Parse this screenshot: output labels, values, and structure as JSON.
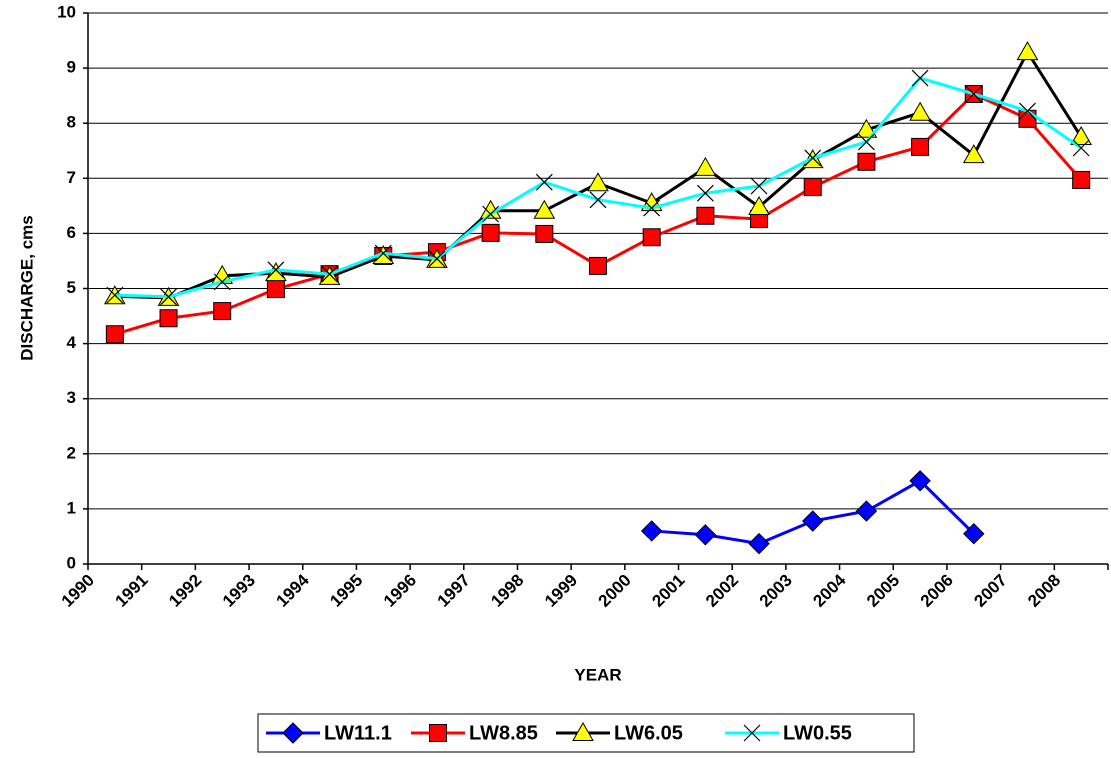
{
  "chart_data": {
    "type": "line",
    "xlabel": "YEAR",
    "ylabel": "DISCHARGE, cms",
    "categories": [
      "1990",
      "1991",
      "1992",
      "1993",
      "1994",
      "1995",
      "1996",
      "1997",
      "1998",
      "1999",
      "2000",
      "2001",
      "2002",
      "2003",
      "2004",
      "2005",
      "2006",
      "2007",
      "2008"
    ],
    "ylim": [
      0,
      10
    ],
    "yticks": [
      0,
      1,
      2,
      3,
      4,
      5,
      6,
      7,
      8,
      9,
      10
    ],
    "grid": true,
    "legend": "bottom",
    "series": [
      {
        "name": "LW11.1",
        "color": "#0000ff",
        "marker": "diamond",
        "marker_color": "#0000ff",
        "values": [
          null,
          null,
          null,
          null,
          null,
          null,
          null,
          null,
          null,
          null,
          0.6,
          0.53,
          0.37,
          0.78,
          0.96,
          1.51,
          0.55,
          null,
          null
        ]
      },
      {
        "name": "LW8.85",
        "color": "#ff0000",
        "marker": "square",
        "marker_color": "#ff0000",
        "values": [
          4.17,
          4.46,
          4.59,
          4.99,
          5.26,
          5.59,
          5.66,
          6.01,
          5.99,
          5.41,
          5.93,
          6.32,
          6.26,
          6.84,
          7.3,
          7.57,
          8.53,
          8.08,
          6.97
        ]
      },
      {
        "name": "LW6.05",
        "color": "#000000",
        "marker": "triangle",
        "marker_color": "#ffff00",
        "values": [
          4.86,
          4.83,
          5.23,
          5.28,
          5.21,
          5.59,
          5.52,
          6.41,
          6.41,
          6.91,
          6.55,
          7.19,
          6.48,
          7.33,
          7.88,
          8.19,
          7.42,
          9.29,
          7.75
        ]
      },
      {
        "name": "LW0.55",
        "color": "#00ffff",
        "marker": "x",
        "marker_color": "#000000",
        "values": [
          4.88,
          4.85,
          5.12,
          5.34,
          5.26,
          5.64,
          5.54,
          6.35,
          6.93,
          6.61,
          6.46,
          6.73,
          6.86,
          7.37,
          7.66,
          8.82,
          8.53,
          8.22,
          7.55
        ]
      }
    ]
  }
}
